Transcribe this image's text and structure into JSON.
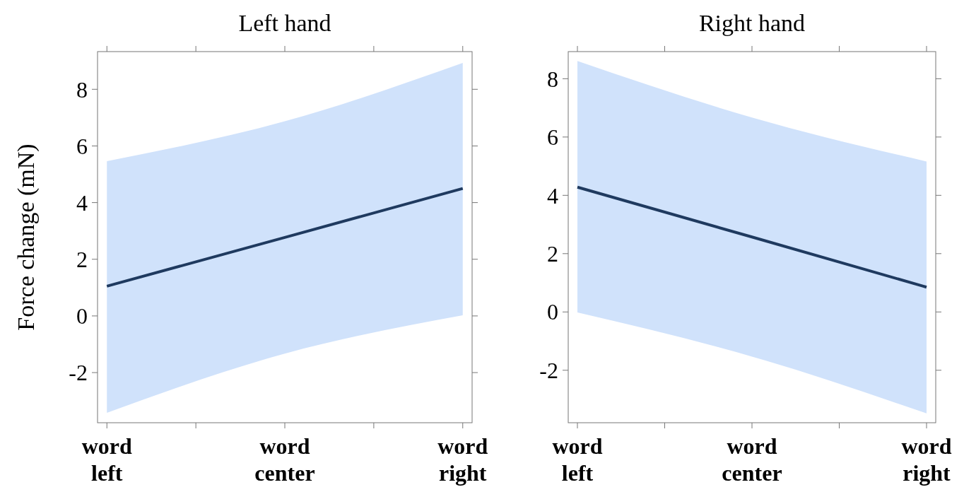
{
  "chart_data": [
    {
      "type": "line",
      "title": "Left hand",
      "ylabel": "Force change (mN)",
      "categories": [
        "word left",
        "word center",
        "word right"
      ],
      "ylim": [
        -3.77,
        9.33
      ],
      "yticks": [
        -2,
        0,
        2,
        4,
        6,
        8
      ],
      "grid": false,
      "line_style": "solid",
      "series": [
        {
          "color": "#1f3a5f",
          "values": [
            1.05,
            2.77,
            4.5
          ],
          "lower": [
            -3.42,
            -1.33,
            0.02
          ],
          "upper": [
            5.46,
            6.87,
            8.93
          ]
        }
      ]
    },
    {
      "type": "line",
      "title": "Right hand",
      "categories": [
        "word left",
        "word center",
        "word right"
      ],
      "ylim": [
        -3.8,
        8.93
      ],
      "yticks": [
        -2,
        0,
        2,
        4,
        6,
        8
      ],
      "grid": false,
      "line_style": "solid",
      "series": [
        {
          "color": "#1f3a5f",
          "values": [
            4.28,
            2.57,
            0.85
          ],
          "lower": [
            -0.02,
            -1.53,
            -3.48
          ],
          "upper": [
            8.61,
            6.67,
            5.16
          ]
        }
      ]
    }
  ]
}
